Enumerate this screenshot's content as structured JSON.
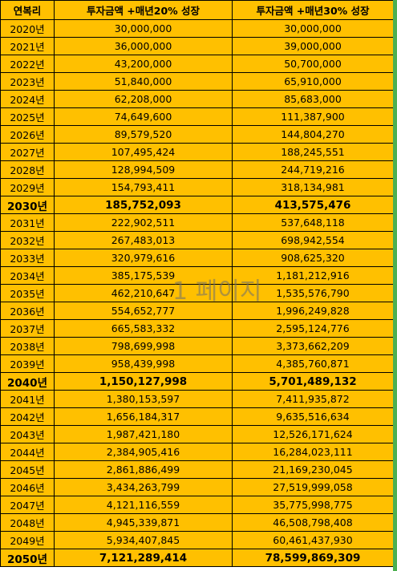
{
  "table": {
    "header": [
      "연복리",
      "투자금액 +매년20% 성장",
      "투자금액 +매년30% 성장"
    ],
    "rows": [
      [
        "2020년",
        "30,000,000",
        "30,000,000"
      ],
      [
        "2021년",
        "36,000,000",
        "39,000,000"
      ],
      [
        "2022년",
        "43,200,000",
        "50,700,000"
      ],
      [
        "2023년",
        "51,840,000",
        "65,910,000"
      ],
      [
        "2024년",
        "62,208,000",
        "85,683,000"
      ],
      [
        "2025년",
        "74,649,600",
        "111,387,900"
      ],
      [
        "2026년",
        "89,579,520",
        "144,804,270"
      ],
      [
        "2027년",
        "107,495,424",
        "188,245,551"
      ],
      [
        "2028년",
        "128,994,509",
        "244,719,216"
      ],
      [
        "2029년",
        "154,793,411",
        "318,134,981"
      ],
      [
        "2030년",
        "185,752,093",
        "413,575,476"
      ],
      [
        "2031년",
        "222,902,511",
        "537,648,118"
      ],
      [
        "2032년",
        "267,483,013",
        "698,942,554"
      ],
      [
        "2033년",
        "320,979,616",
        "908,625,320"
      ],
      [
        "2034년",
        "385,175,539",
        "1,181,212,916"
      ],
      [
        "2035년",
        "462,210,647",
        "1,535,576,790"
      ],
      [
        "2036년",
        "554,652,777",
        "1,996,249,828"
      ],
      [
        "2037년",
        "665,583,332",
        "2,595,124,776"
      ],
      [
        "2038년",
        "798,699,998",
        "3,373,662,209"
      ],
      [
        "2039년",
        "958,439,998",
        "4,385,760,871"
      ],
      [
        "2040년",
        "1,150,127,998",
        "5,701,489,132"
      ],
      [
        "2041년",
        "1,380,153,597",
        "7,411,935,872"
      ],
      [
        "2042년",
        "1,656,184,317",
        "9,635,516,634"
      ],
      [
        "2043년",
        "1,987,421,180",
        "12,526,171,624"
      ],
      [
        "2044년",
        "2,384,905,416",
        "16,284,023,111"
      ],
      [
        "2045년",
        "2,861,886,499",
        "21,169,230,045"
      ],
      [
        "2046년",
        "3,434,263,799",
        "27,519,999,058"
      ],
      [
        "2047년",
        "4,121,116,559",
        "35,775,998,775"
      ],
      [
        "2048년",
        "4,945,339,871",
        "46,508,798,408"
      ],
      [
        "2049년",
        "5,934,407,845",
        "60,461,437,930"
      ],
      [
        "2050년",
        "7,121,289,414",
        "78,599,869,309"
      ]
    ],
    "bold_rows": [
      10,
      20,
      30
    ]
  },
  "watermark": "1 페이지"
}
